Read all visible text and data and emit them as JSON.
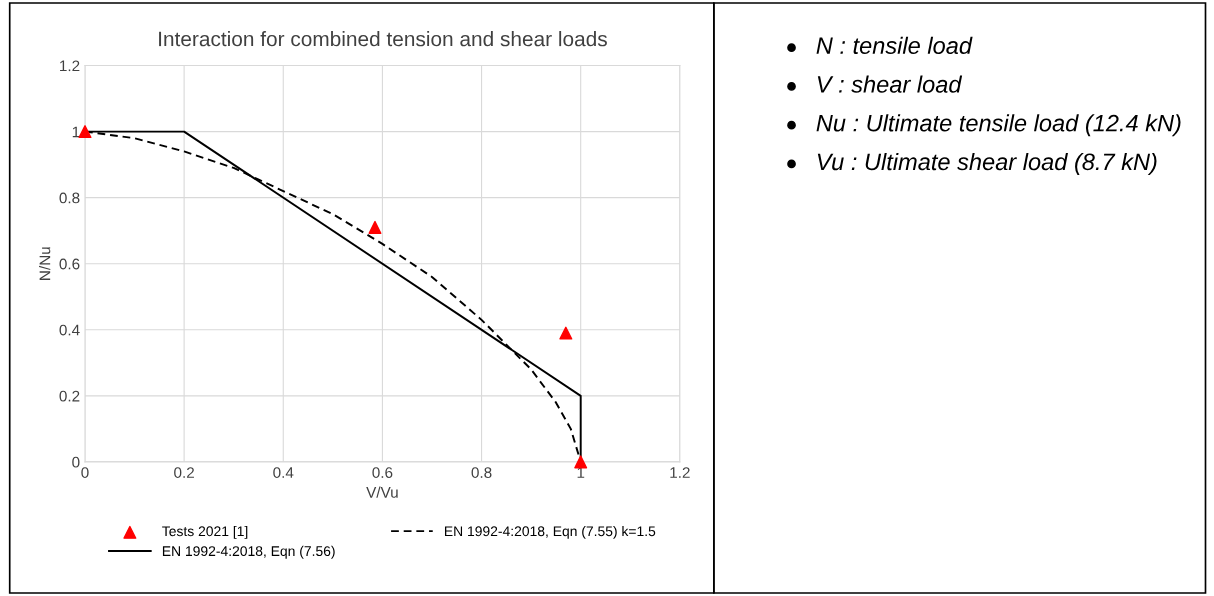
{
  "chart_data": {
    "type": "scatter",
    "title": "Interaction for combined tension and shear loads",
    "xlabel": "V/Vu",
    "ylabel": "N/Nu",
    "xlim": [
      0,
      1.2
    ],
    "xticks": [
      0,
      0.2,
      0.4,
      0.6,
      0.8,
      1,
      1.2
    ],
    "ylim": [
      0,
      1.2
    ],
    "yticks": [
      0,
      0.2,
      0.4,
      0.6,
      0.8,
      1,
      1.2
    ],
    "grid": true,
    "legend": "bottom",
    "series": [
      {
        "name": "Tests 2021 [1]",
        "color": "#ff0000",
        "marker": "triangle",
        "x": [
          0,
          0.585,
          0.97,
          1
        ],
        "values": [
          1,
          0.71,
          0.39,
          0
        ]
      },
      {
        "name": "EN 1992-4:2018, Eqn (7.56)",
        "type": "line",
        "color": "#000000",
        "line_style": "solid",
        "marker": "none",
        "x": [
          0,
          0.2,
          1,
          1
        ],
        "values": [
          1,
          1,
          0.2,
          0
        ]
      },
      {
        "name": "EN 1992-4:2018, Eqn (7.55) k=1.5",
        "type": "line",
        "color": "#000000",
        "line_style": "dashed",
        "marker": "none",
        "x": [
          0,
          0.1,
          0.2,
          0.3,
          0.4,
          0.5,
          0.6,
          0.7,
          0.8,
          0.9,
          0.95,
          0.98,
          1
        ],
        "values": [
          1,
          0.98,
          0.94,
          0.89,
          0.82,
          0.75,
          0.66,
          0.56,
          0.43,
          0.28,
          0.18,
          0.1,
          0
        ]
      }
    ],
    "annotations": [
      "N : tensile load",
      "V : shear load",
      "Nu : Ultimate tensile load (12.4 kN)",
      "Vu : Ultimate shear load (8.7 kN)"
    ]
  }
}
